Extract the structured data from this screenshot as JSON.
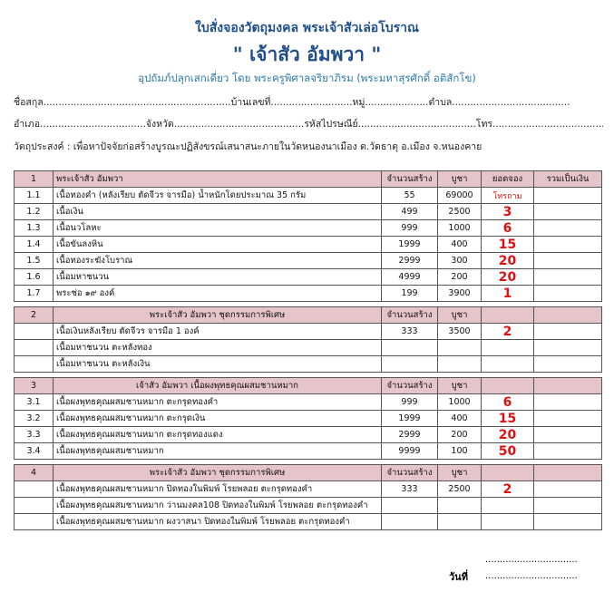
{
  "header": {
    "title": "ใบสั่งจองวัตถุมงคล พระเจ้าสัวเล่อโบราณ",
    "name": "\" เจ้าสัว อัมพวา \"",
    "subtitle": "อุปถัมภ์ปลุกเสกเดี่ยว โดย พระครูพิศาลจริยาภิรม (พระมหาสุรศักดิ์ อติสักโข)"
  },
  "form": {
    "line1": "ชื่อสกุล..............................................................บ้านเลขที่...........................หมู่.....................ตำบล.......................................",
    "line2": "อำเภอ...................................จังหวัด...........................................รหัสไปรษณีย์.......................................โทร.......................................",
    "purpose": "วัตถุประสงค์ : เพื่อหาปัจจัยก่อสร้างบูรณะปฏิสังขรณ์เสนาสนะภายในวัดหนองนาเมือง ต.วัดธาตุ อ.เมือง จ.หนองคาย"
  },
  "table": {
    "sections": [
      {
        "header": {
          "no": "1",
          "item": "พระเจ้าสัว อัมพวา",
          "made": "จำนวนสร้าง",
          "price": "บูชา",
          "booked": "ยอดจอง",
          "total": "รวมเป็นเงิน"
        },
        "rows": [
          {
            "no": "1.1",
            "item": "เนื้อทองคำ (หลังเรียบ ตัดจีวร จารมือ) น้ำหนักโดยประมาณ 35 กรัม",
            "made": 55,
            "price": 69000,
            "booked": "โทรถาม"
          },
          {
            "no": "1.2",
            "item": "เนื้อเงิน",
            "made": 499,
            "price": 2500,
            "booked": 3
          },
          {
            "no": "1.3",
            "item": "เนื้อนวโลหะ",
            "made": 999,
            "price": 1000,
            "booked": 6
          },
          {
            "no": "1.4",
            "item": "เนื้อขันลงหิน",
            "made": 1999,
            "price": 400,
            "booked": 15
          },
          {
            "no": "1.5",
            "item": "เนื้อทองระฆังโบราณ",
            "made": 2999,
            "price": 300,
            "booked": 20
          },
          {
            "no": "1.6",
            "item": "เนื้อมหาชนวน",
            "made": 4999,
            "price": 200,
            "booked": 20
          },
          {
            "no": "1.7",
            "item": "พระช่อ ๑๙ องค์",
            "made": 199,
            "price": 3900,
            "booked": 1
          }
        ]
      },
      {
        "header": {
          "no": "2",
          "item": "พระเจ้าสัว อัมพวา ชุดกรรมการพิเศษ",
          "made": "จำนวนสร้าง",
          "price": "บูชา"
        },
        "rows": [
          {
            "item": "เนื้อเงินหลังเรียบ ตัดจีวร จารมือ 1 องค์",
            "made": 333,
            "price": 3500,
            "booked": 2
          },
          {
            "item": "เนื้อมหาชนวน ตะหลังทอง"
          },
          {
            "item": "เนื้อมหาชนวน ตะหลังเงิน"
          }
        ]
      },
      {
        "header": {
          "no": "3",
          "item": "เจ้าสัว อัมพวา เนื้อผงพุทธคุณผสมชานหมาก",
          "made": "จำนวนสร้าง",
          "price": "บูชา"
        },
        "rows": [
          {
            "no": "3.1",
            "item": "เนื้อผงพุทธคุณผสมชานหมาก ตะกรุดทองคำ",
            "made": 999,
            "price": 1000,
            "booked": 6
          },
          {
            "no": "3.2",
            "item": "เนื้อผงพุทธคุณผสมชานหมาก ตะกรุดเงิน",
            "made": 1999,
            "price": 400,
            "booked": 15
          },
          {
            "no": "3.3",
            "item": "เนื้อผงพุทธคุณผสมชานหมาก ตะกรุดทองแดง",
            "made": 2999,
            "price": 200,
            "booked": 20
          },
          {
            "no": "3.4",
            "item": "เนื้อผงพุทธคุณผสมชานหมาก",
            "made": 9999,
            "price": 100,
            "booked": 50
          }
        ]
      },
      {
        "header": {
          "no": "4",
          "item": "พระเจ้าสัว อัมพวา ชุดกรรมการพิเศษ",
          "made": "จำนวนสร้าง",
          "price": "บูชา"
        },
        "rows": [
          {
            "item": "เนื้อผงพุทธคุณผสมชานหมาก ปิดทองในพิมพ์ โรยพลอย ตะกรุดทองคำ",
            "made": 333,
            "price": 2500,
            "booked": 2
          },
          {
            "item": "เนื้อผงพุทธคุณผสมชานหมาก ว่านมงคล108 ปิดทองในพิมพ์ โรยพลอย ตะกรุดทองคำ"
          },
          {
            "item": "เนื้อผงพุทธคุณผสมชานหมาก ผงวาสนา ปิดทองในพิมพ์ โรยพลอย ตะกรุดทองคำ"
          }
        ]
      }
    ]
  },
  "footer": {
    "date_label": "วันที่",
    "date_line": "................................",
    "sign_line": "................................"
  }
}
